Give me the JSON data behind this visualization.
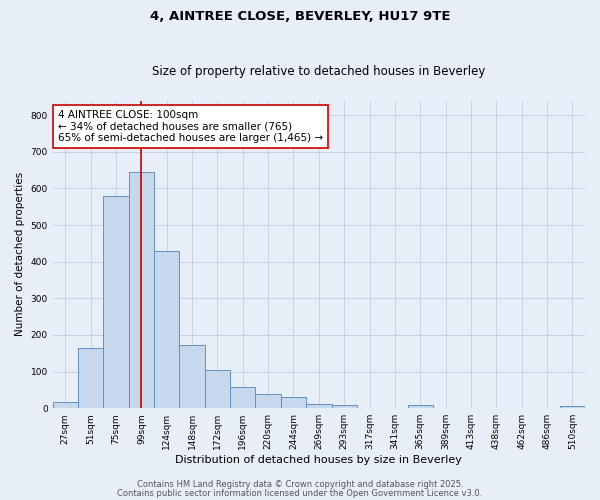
{
  "title": "4, AINTREE CLOSE, BEVERLEY, HU17 9TE",
  "subtitle": "Size of property relative to detached houses in Beverley",
  "xlabel": "Distribution of detached houses by size in Beverley",
  "ylabel": "Number of detached properties",
  "categories": [
    "27sqm",
    "51sqm",
    "75sqm",
    "99sqm",
    "124sqm",
    "148sqm",
    "172sqm",
    "196sqm",
    "220sqm",
    "244sqm",
    "269sqm",
    "293sqm",
    "317sqm",
    "341sqm",
    "365sqm",
    "389sqm",
    "413sqm",
    "438sqm",
    "462sqm",
    "486sqm",
    "510sqm"
  ],
  "values": [
    17,
    165,
    580,
    645,
    430,
    172,
    103,
    57,
    40,
    30,
    12,
    10,
    0,
    0,
    8,
    0,
    0,
    0,
    0,
    0,
    7
  ],
  "bar_color": "#c8d8ec",
  "bar_edge_color": "#6090c0",
  "bar_linewidth": 0.7,
  "vline_x_index": 3,
  "vline_color": "#cc0000",
  "vline_linewidth": 1.2,
  "grid_color": "#c8d4e4",
  "background_color": "#e8eef8",
  "annotation_line1": "4 AINTREE CLOSE: 100sqm",
  "annotation_line2": "← 34% of detached houses are smaller (765)",
  "annotation_line3": "65% of semi-detached houses are larger (1,465) →",
  "annotation_box_color": "#ffffff",
  "annotation_box_edge": "#cc0000",
  "ylim": [
    0,
    840
  ],
  "yticks": [
    0,
    100,
    200,
    300,
    400,
    500,
    600,
    700,
    800
  ],
  "footer_line1": "Contains HM Land Registry data © Crown copyright and database right 2025.",
  "footer_line2": "Contains public sector information licensed under the Open Government Licence v3.0.",
  "title_fontsize": 9.5,
  "subtitle_fontsize": 8.5,
  "xlabel_fontsize": 8,
  "ylabel_fontsize": 7.5,
  "tick_fontsize": 6.5,
  "annotation_fontsize": 7.5,
  "footer_fontsize": 6
}
